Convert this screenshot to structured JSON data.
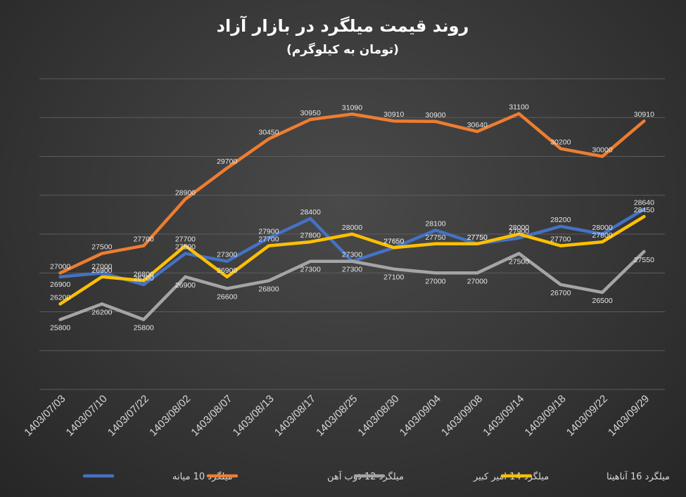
{
  "chart_data": {
    "type": "line",
    "title": "روند قیمت میلگرد در بازار آزاد",
    "subtitle": "(تومان به کیلوگرم)",
    "categories": [
      "1403/07/03",
      "1403/07/10",
      "1403/07/22",
      "1403/08/02",
      "1403/08/07",
      "1403/08/13",
      "1403/08/17",
      "1403/08/25",
      "1403/08/30",
      "1403/09/04",
      "1403/09/08",
      "1403/09/14",
      "1403/09/18",
      "1403/09/22",
      "1403/09/29"
    ],
    "ylim": [
      24000,
      32000
    ],
    "grid": true,
    "legend_position": "bottom",
    "series": [
      {
        "name": "میلگرد 10 میانه",
        "color": "#4472C4",
        "values": [
          26900,
          27000,
          26700,
          27500,
          27300,
          27900,
          28400,
          27300,
          27650,
          28100,
          27750,
          27900,
          28200,
          28000,
          28640
        ]
      },
      {
        "name": "میلگرد  12 ذوب آهن",
        "color": "#ED7D31",
        "values": [
          27000,
          27500,
          27700,
          28900,
          29700,
          30450,
          30950,
          31090,
          30910,
          30900,
          30640,
          31100,
          30200,
          30000,
          30910
        ]
      },
      {
        "name": "میلگرد 14 امیر کبیر",
        "color": "#A5A5A5",
        "values": [
          25800,
          26200,
          25800,
          26900,
          26600,
          26800,
          27300,
          27300,
          27100,
          27000,
          27000,
          27500,
          26700,
          26500,
          27550
        ]
      },
      {
        "name": "میلگرد 16 آناهیتا",
        "color": "#FFC000",
        "values": [
          26200,
          26900,
          26800,
          27700,
          26900,
          27700,
          27800,
          28000,
          27650,
          27750,
          27750,
          28000,
          27700,
          27800,
          28450
        ]
      }
    ]
  }
}
